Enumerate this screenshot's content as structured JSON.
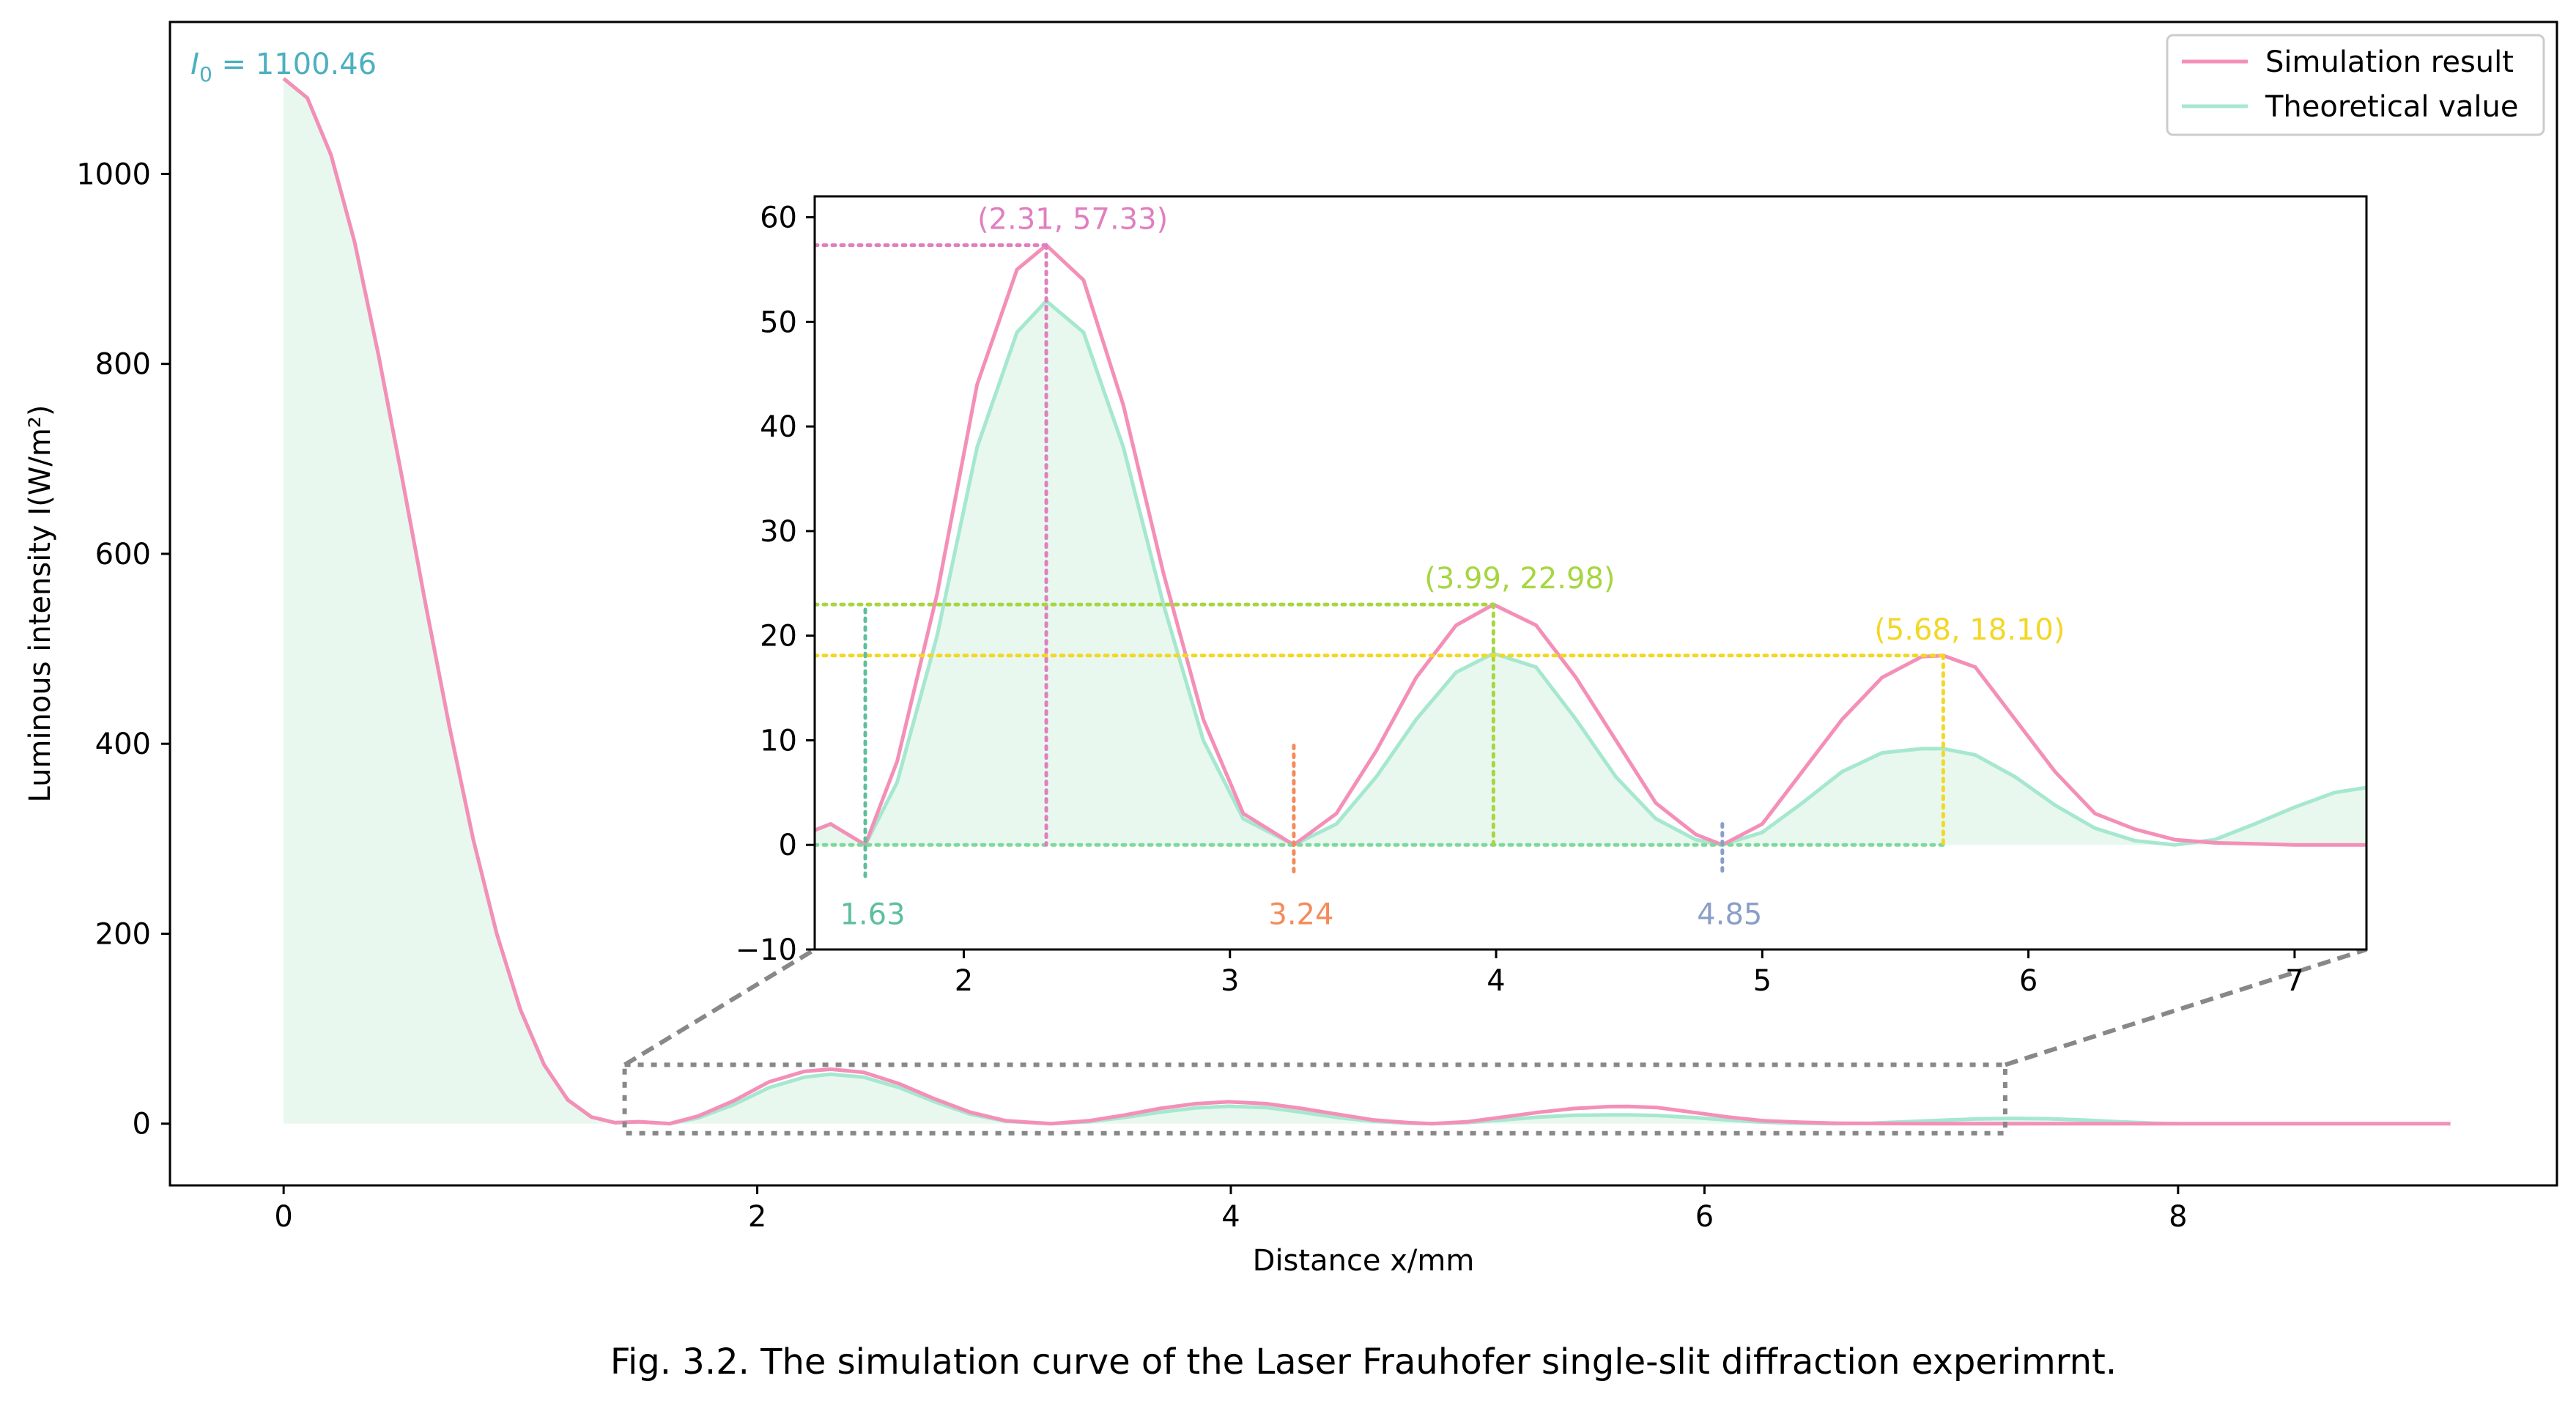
{
  "caption": "Fig. 3.2. The simulation curve of the Laser Frauhofer single-slit diffraction experimrnt.",
  "colors": {
    "simulation": "#f48fb8",
    "theory": "#a6e8cf",
    "fill": "#e8f8ef",
    "i0_label": "#4cb0c0",
    "zoom_box": "#888888",
    "peak1": "#e07fc0",
    "peak2": "#a6d640",
    "peak3": "#f2d726",
    "min1": "#5dbf9c",
    "min2": "#f58a5a",
    "min3": "#8a9ec8",
    "zero_line": "#7fd99b"
  },
  "chart_data": {
    "type": "line",
    "xlabel": "Distance x/mm",
    "ylabel": "Luminous intensity I(W/m²)",
    "xlim": [
      -0.48,
      9.6
    ],
    "ylim": [
      -65,
      1160
    ],
    "xticks": [
      0,
      2,
      4,
      6,
      8
    ],
    "yticks": [
      0,
      200,
      400,
      600,
      800,
      1000
    ],
    "grid": false,
    "legend_position": "top-right",
    "legend": [
      "Simulation result",
      "Theoretical value"
    ],
    "annotation_I0": {
      "symbol": "I",
      "subscript": "0",
      "value": "1100.46",
      "x": 0,
      "y": 1100.46
    },
    "series": [
      {
        "name": "Simulation result",
        "x": [
          0,
          0.1,
          0.2,
          0.3,
          0.4,
          0.5,
          0.6,
          0.7,
          0.8,
          0.9,
          1.0,
          1.1,
          1.2,
          1.3,
          1.4,
          1.5,
          1.63,
          1.75,
          1.9,
          2.05,
          2.2,
          2.31,
          2.45,
          2.6,
          2.75,
          2.9,
          3.05,
          3.24,
          3.4,
          3.55,
          3.7,
          3.85,
          3.99,
          4.15,
          4.3,
          4.45,
          4.6,
          4.75,
          4.85,
          5.0,
          5.15,
          5.3,
          5.45,
          5.6,
          5.68,
          5.8,
          5.95,
          6.1,
          6.25,
          6.4,
          6.55,
          6.7,
          6.85,
          7.0,
          7.2,
          7.5,
          8.0,
          8.5,
          9.0,
          9.15
        ],
        "values": [
          1100.46,
          1080,
          1020,
          928,
          810,
          680,
          546,
          418,
          300,
          200,
          120,
          62,
          25,
          7,
          1,
          2,
          0,
          8,
          24,
          44,
          55,
          57.33,
          54,
          42,
          26,
          12,
          3,
          0,
          3,
          9,
          16,
          21,
          22.98,
          21,
          16,
          10,
          4,
          1,
          0,
          2,
          7,
          12,
          16,
          18,
          18.1,
          17,
          12,
          7,
          3,
          1.5,
          0.5,
          0.2,
          0.1,
          0,
          0,
          0,
          0,
          0,
          0,
          0
        ]
      },
      {
        "name": "Theoretical value",
        "x": [
          0,
          0.1,
          0.2,
          0.3,
          0.4,
          0.5,
          0.6,
          0.7,
          0.8,
          0.9,
          1.0,
          1.1,
          1.2,
          1.3,
          1.4,
          1.5,
          1.63,
          1.75,
          1.9,
          2.05,
          2.2,
          2.31,
          2.45,
          2.6,
          2.75,
          2.9,
          3.05,
          3.24,
          3.4,
          3.55,
          3.7,
          3.85,
          3.99,
          4.15,
          4.3,
          4.45,
          4.6,
          4.75,
          4.85,
          5.0,
          5.15,
          5.3,
          5.45,
          5.6,
          5.68,
          5.8,
          5.95,
          6.1,
          6.25,
          6.4,
          6.55,
          6.7,
          6.85,
          7.0,
          7.15,
          7.3,
          7.45,
          7.6,
          7.75,
          7.9,
          8.0
        ],
        "values": [
          1100.46,
          1080,
          1020,
          928,
          810,
          680,
          546,
          418,
          300,
          200,
          120,
          62,
          25,
          7,
          1,
          2,
          0,
          6,
          20,
          38,
          49,
          52,
          49,
          38,
          23,
          10,
          2.5,
          0,
          2,
          6.5,
          12,
          16.5,
          18.3,
          17,
          12,
          6.5,
          2.5,
          0.5,
          0,
          1.2,
          4,
          7,
          8.8,
          9.2,
          9.2,
          8.6,
          6.5,
          3.8,
          1.6,
          0.4,
          0,
          0.5,
          2,
          3.6,
          5,
          5.6,
          5.2,
          3.8,
          2,
          0.5,
          0
        ]
      }
    ],
    "inset": {
      "type": "line",
      "xlim": [
        1.44,
        7.27
      ],
      "ylim": [
        -10,
        62
      ],
      "xticks": [
        2,
        3,
        4,
        5,
        6,
        7
      ],
      "yticks": [
        -10,
        0,
        10,
        20,
        30,
        40,
        50,
        60
      ],
      "zoom_region": {
        "x": [
          1.44,
          7.27
        ],
        "y": [
          -10,
          62
        ]
      },
      "peaks": [
        {
          "label": "(2.31, 57.33)",
          "x": 2.31,
          "y": 57.33
        },
        {
          "label": "(3.99, 22.98)",
          "x": 3.99,
          "y": 22.98
        },
        {
          "label": "(5.68, 18.10)",
          "x": 5.68,
          "y": 18.1
        }
      ],
      "minima": [
        {
          "label": "1.63",
          "x": 1.63
        },
        {
          "label": "3.24",
          "x": 3.24
        },
        {
          "label": "4.85",
          "x": 4.85
        }
      ]
    }
  }
}
